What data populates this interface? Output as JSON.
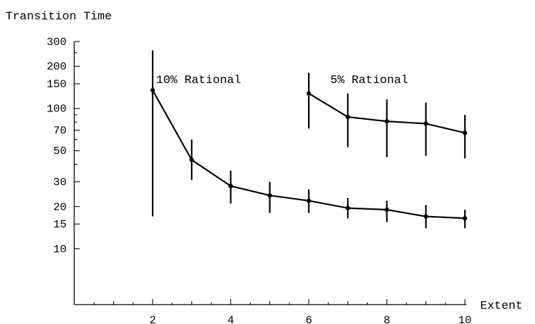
{
  "chart_data": {
    "type": "line",
    "ylabel": "Transition Time",
    "xlabel": "Extent",
    "x_ticks": [
      2,
      4,
      6,
      8,
      10
    ],
    "y_ticks": [
      10,
      15,
      20,
      30,
      50,
      70,
      100,
      150,
      200,
      300
    ],
    "y_scale": "log",
    "xlim": [
      0.2,
      10
    ],
    "ylim": [
      4,
      300
    ],
    "grid": false,
    "series": [
      {
        "name": "10% Rational",
        "x": [
          2,
          3,
          4,
          5,
          6,
          7,
          8,
          9,
          10
        ],
        "y": [
          135,
          43,
          28,
          24,
          22,
          19.5,
          19,
          17,
          16.5
        ],
        "err_low": [
          17,
          31,
          21,
          18,
          18,
          16.5,
          15.5,
          14,
          14
        ],
        "err_high": [
          260,
          60,
          36,
          30,
          26.5,
          23,
          22,
          20.5,
          19
        ]
      },
      {
        "name": "5% Rational",
        "x": [
          6,
          7,
          8,
          9,
          10
        ],
        "y": [
          128,
          87,
          81,
          78,
          67
        ],
        "err_low": [
          72,
          53,
          45,
          46,
          44
        ],
        "err_high": [
          180,
          128,
          116,
          110,
          90
        ]
      }
    ],
    "annotations": [
      "10% Rational",
      "5% Rational"
    ]
  }
}
